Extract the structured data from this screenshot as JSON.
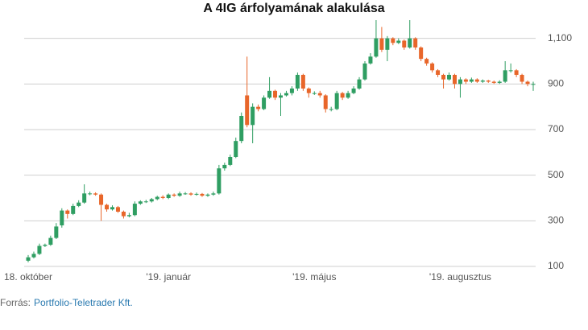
{
  "chart_data": {
    "type": "candlestick",
    "title": "A 4IG árfolyamának alakulása",
    "categories": [
      "18. október",
      null,
      null,
      null,
      null,
      null,
      null,
      null,
      null,
      null,
      null,
      null,
      null,
      null,
      null,
      null,
      null,
      null,
      null,
      null,
      null,
      null,
      null,
      null,
      null,
      "'19. január",
      null,
      null,
      null,
      null,
      null,
      null,
      null,
      null,
      null,
      null,
      null,
      null,
      null,
      null,
      null,
      null,
      null,
      null,
      null,
      null,
      null,
      null,
      null,
      null,
      null,
      "'19. május",
      null,
      null,
      null,
      null,
      null,
      null,
      null,
      null,
      null,
      null,
      null,
      null,
      null,
      null,
      null,
      null,
      null,
      null,
      null,
      null,
      null,
      null,
      null,
      null,
      null,
      "'19. augusztus",
      null,
      null,
      null,
      null,
      null,
      null,
      null,
      null,
      null,
      null,
      null,
      null,
      null
    ],
    "open": [
      125,
      140,
      155,
      190,
      195,
      225,
      280,
      345,
      330,
      365,
      380,
      420,
      420,
      415,
      370,
      350,
      360,
      340,
      320,
      325,
      375,
      385,
      385,
      395,
      405,
      400,
      415,
      410,
      420,
      420,
      415,
      418,
      410,
      415,
      420,
      530,
      545,
      580,
      650,
      850,
      720,
      800,
      790,
      840,
      870,
      840,
      850,
      860,
      880,
      940,
      880,
      860,
      860,
      850,
      790,
      790,
      860,
      840,
      860,
      880,
      920,
      990,
      1020,
      1100,
      1050,
      1100,
      1080,
      1090,
      1060,
      1100,
      1060,
      1010,
      990,
      960,
      940,
      920,
      940,
      900,
      920,
      910,
      920,
      910,
      915,
      910,
      905,
      910,
      960,
      960,
      940,
      910,
      900
    ],
    "high": [
      150,
      165,
      200,
      200,
      235,
      290,
      355,
      350,
      375,
      390,
      460,
      428,
      425,
      420,
      375,
      368,
      365,
      345,
      335,
      385,
      390,
      392,
      400,
      410,
      412,
      420,
      420,
      428,
      426,
      425,
      424,
      422,
      420,
      428,
      545,
      555,
      590,
      665,
      775,
      1020,
      815,
      810,
      850,
      930,
      875,
      860,
      870,
      890,
      950,
      945,
      885,
      868,
      870,
      855,
      800,
      870,
      865,
      870,
      890,
      930,
      1000,
      1035,
      1180,
      1150,
      1110,
      1105,
      1100,
      1095,
      1180,
      1105,
      1065,
      1015,
      995,
      965,
      945,
      950,
      945,
      930,
      925,
      928,
      925,
      920,
      918,
      915,
      916,
      1000,
      990,
      965,
      945,
      915,
      910
    ],
    "low": [
      118,
      135,
      150,
      185,
      190,
      220,
      270,
      310,
      325,
      360,
      375,
      412,
      410,
      300,
      340,
      345,
      335,
      310,
      315,
      320,
      370,
      378,
      380,
      390,
      395,
      395,
      405,
      405,
      414,
      410,
      410,
      405,
      405,
      410,
      415,
      520,
      540,
      575,
      640,
      710,
      640,
      780,
      785,
      835,
      830,
      760,
      845,
      850,
      870,
      870,
      840,
      852,
      840,
      775,
      780,
      785,
      830,
      835,
      855,
      875,
      915,
      985,
      1015,
      1040,
      1000,
      1070,
      1075,
      1050,
      1055,
      1050,
      1000,
      980,
      950,
      930,
      880,
      915,
      880,
      840,
      900,
      905,
      905,
      905,
      905,
      900,
      900,
      905,
      950,
      930,
      900,
      890,
      870
    ],
    "close": [
      140,
      155,
      190,
      195,
      225,
      275,
      345,
      330,
      365,
      380,
      420,
      420,
      415,
      370,
      350,
      360,
      340,
      320,
      325,
      375,
      385,
      385,
      395,
      405,
      400,
      415,
      410,
      420,
      420,
      415,
      418,
      410,
      415,
      420,
      530,
      545,
      580,
      650,
      760,
      720,
      800,
      790,
      840,
      870,
      840,
      850,
      860,
      880,
      940,
      880,
      860,
      860,
      850,
      790,
      790,
      860,
      840,
      860,
      880,
      920,
      990,
      1020,
      1100,
      1050,
      1100,
      1080,
      1090,
      1060,
      1100,
      1060,
      1010,
      990,
      960,
      940,
      920,
      940,
      900,
      920,
      910,
      920,
      910,
      915,
      910,
      905,
      910,
      960,
      960,
      940,
      910,
      900,
      900
    ],
    "up_color": "#2f9e62",
    "down_color": "#e8662a",
    "ylim": [
      100,
      1180
    ],
    "yticks": [
      100,
      300,
      500,
      700,
      900,
      {
        "value": 1100,
        "label": "1,100"
      }
    ],
    "grid": true,
    "source_label": "Forrás:",
    "source": "Portfolio-Teletrader Kft."
  }
}
